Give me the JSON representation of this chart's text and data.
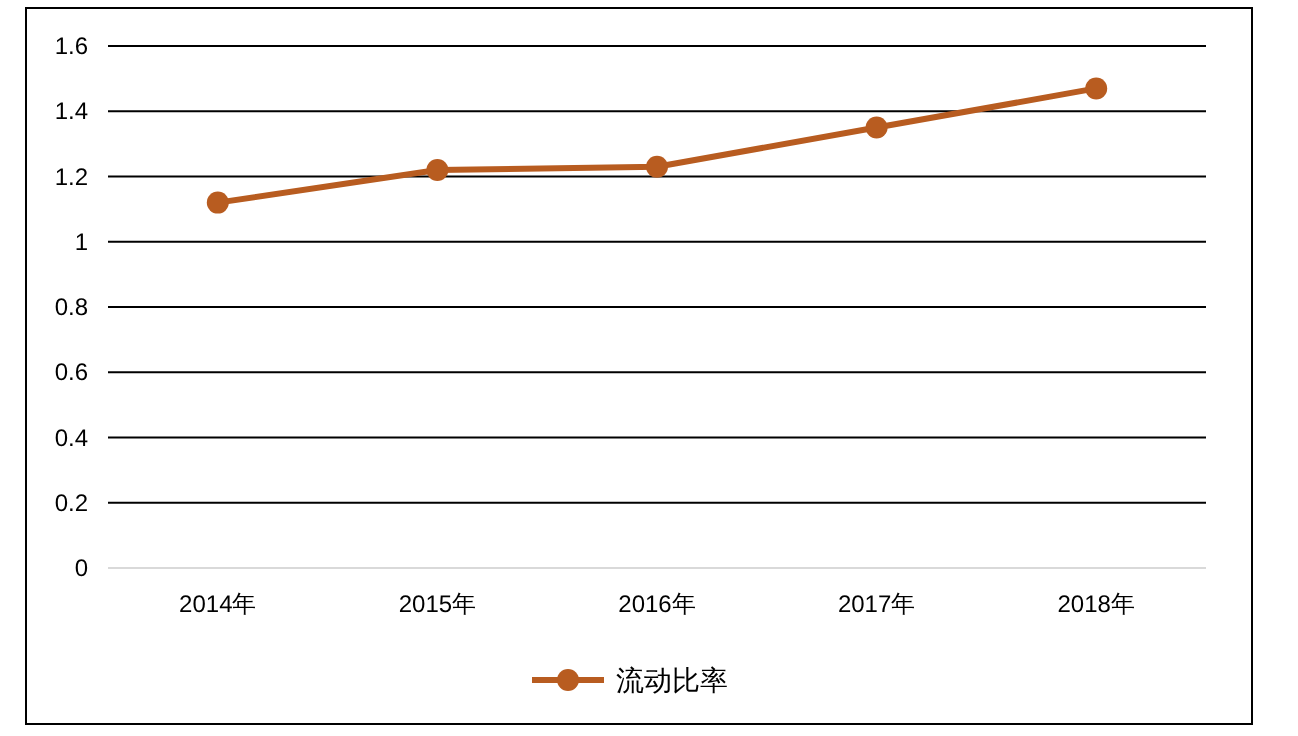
{
  "chart_data": {
    "type": "line",
    "categories": [
      "2014年",
      "2015年",
      "2016年",
      "2017年",
      "2018年"
    ],
    "series": [
      {
        "name": "流动比率",
        "color": "#b85c20",
        "values": [
          1.12,
          1.22,
          1.23,
          1.35,
          1.47
        ]
      }
    ],
    "ylim": [
      0,
      1.6
    ],
    "yticks": [
      0,
      0.2,
      0.4,
      0.6,
      0.8,
      1,
      1.2,
      1.4,
      1.6
    ],
    "grid": "y",
    "legend": "bottom",
    "marker": "circle",
    "line_style": "solid"
  }
}
